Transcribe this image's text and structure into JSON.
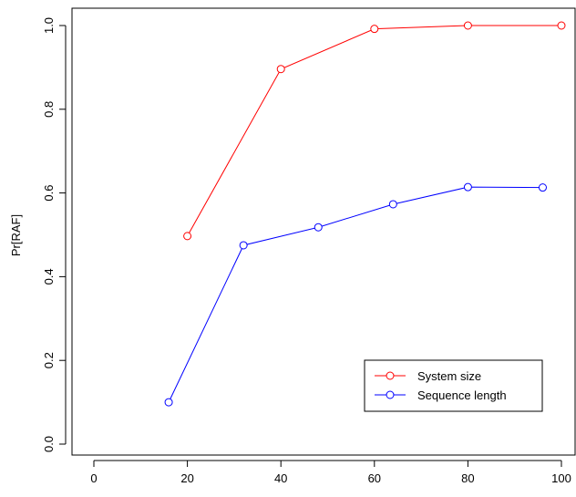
{
  "chart_data": {
    "type": "line",
    "title": "",
    "xlabel": "",
    "ylabel": "Pr[RAF]",
    "xlim": [
      0,
      100
    ],
    "ylim": [
      0,
      1
    ],
    "xticks": [
      0,
      20,
      40,
      60,
      80,
      100
    ],
    "yticks": [
      0.0,
      0.2,
      0.4,
      0.6,
      0.8,
      1.0
    ],
    "xtick_labels": [
      "0",
      "20",
      "40",
      "60",
      "80",
      "100"
    ],
    "ytick_labels": [
      "0.0",
      "0.2",
      "0.4",
      "0.6",
      "0.8",
      "1.0"
    ],
    "grid": false,
    "legend_position": "bottom-right",
    "series": [
      {
        "name": "System size",
        "color": "#ff0000",
        "x": [
          20,
          40,
          60,
          80,
          100
        ],
        "y": [
          0.497,
          0.896,
          0.992,
          1.0,
          1.0
        ]
      },
      {
        "name": "Sequence length",
        "color": "#0000ff",
        "x": [
          16,
          32,
          48,
          64,
          80,
          96
        ],
        "y": [
          0.1,
          0.475,
          0.518,
          0.573,
          0.614,
          0.613
        ]
      }
    ]
  }
}
